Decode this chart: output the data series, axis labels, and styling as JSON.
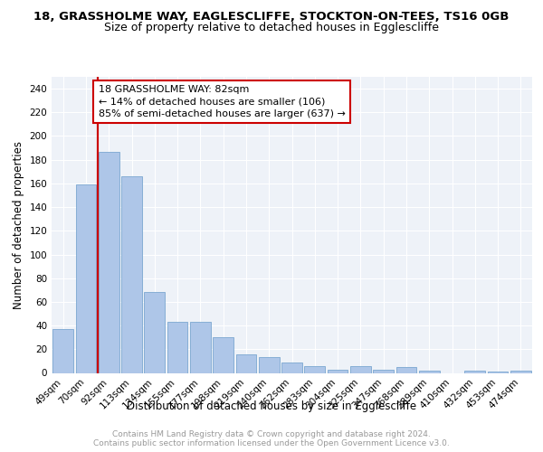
{
  "title": "18, GRASSHOLME WAY, EAGLESCLIFFE, STOCKTON-ON-TEES, TS16 0GB",
  "subtitle": "Size of property relative to detached houses in Egglescliffe",
  "xlabel": "Distribution of detached houses by size in Egglescliffe",
  "ylabel": "Number of detached properties",
  "categories": [
    "49sqm",
    "70sqm",
    "92sqm",
    "113sqm",
    "134sqm",
    "155sqm",
    "177sqm",
    "198sqm",
    "219sqm",
    "240sqm",
    "262sqm",
    "283sqm",
    "304sqm",
    "325sqm",
    "347sqm",
    "368sqm",
    "389sqm",
    "410sqm",
    "432sqm",
    "453sqm",
    "474sqm"
  ],
  "values": [
    37,
    159,
    187,
    166,
    68,
    43,
    43,
    30,
    16,
    13,
    9,
    6,
    3,
    6,
    3,
    5,
    2,
    0,
    2,
    1,
    2
  ],
  "bar_color": "#aec6e8",
  "bar_edge_color": "#7ba7d0",
  "vline_color": "#cc0000",
  "annotation_text": "18 GRASSHOLME WAY: 82sqm\n← 14% of detached houses are smaller (106)\n85% of semi-detached houses are larger (637) →",
  "annotation_box_color": "#ffffff",
  "annotation_box_edge_color": "#cc0000",
  "ylim": [
    0,
    250
  ],
  "yticks": [
    0,
    20,
    40,
    60,
    80,
    100,
    120,
    140,
    160,
    180,
    200,
    220,
    240
  ],
  "footer": "Contains HM Land Registry data © Crown copyright and database right 2024.\nContains public sector information licensed under the Open Government Licence v3.0.",
  "background_color": "#eef2f8",
  "grid_color": "#ffffff",
  "title_fontsize": 9.5,
  "subtitle_fontsize": 9,
  "xlabel_fontsize": 8.5,
  "ylabel_fontsize": 8.5,
  "tick_fontsize": 7.5,
  "annotation_fontsize": 8,
  "footer_fontsize": 6.5
}
